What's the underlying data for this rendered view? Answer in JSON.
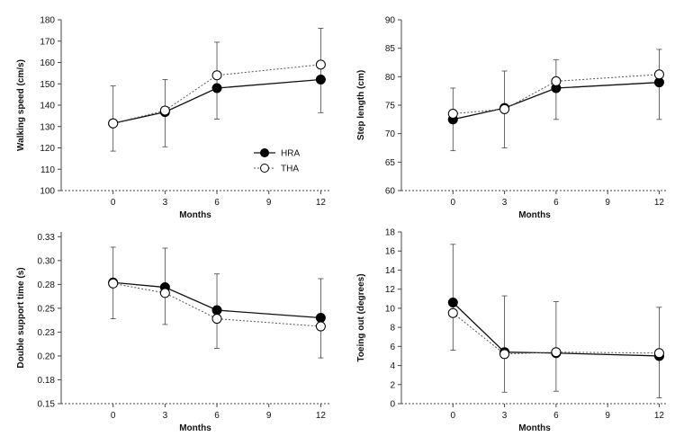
{
  "legend": {
    "series": [
      "HRA",
      "THA"
    ]
  },
  "chart_data": [
    {
      "type": "line",
      "xlabel": "Months",
      "ylabel": "Walking speed (cm/s)",
      "x": [
        0,
        3,
        6,
        12
      ],
      "xticks": [
        0,
        3,
        6,
        9,
        12
      ],
      "xlim": [
        -3,
        12.5
      ],
      "ylim": [
        100,
        180
      ],
      "yticks": [
        100,
        110,
        120,
        130,
        140,
        150,
        160,
        170,
        180
      ],
      "tick_labels": [
        "100",
        "110",
        "120",
        "130",
        "140",
        "150",
        "160",
        "170",
        "180"
      ],
      "series": [
        {
          "name": "HRA",
          "values": [
            131.5,
            136.8,
            148,
            152
          ],
          "err_low": [
            118.5,
            120.5,
            133.5,
            136.5
          ],
          "err_high": [
            149,
            152,
            169.5,
            176
          ],
          "style": "filled-solid"
        },
        {
          "name": "THA",
          "values": [
            131.5,
            137.5,
            154,
            159
          ],
          "err_low": [
            118.5,
            120.5,
            133.5,
            136.5
          ],
          "err_high": [
            149,
            152,
            169.5,
            176
          ],
          "style": "open-dotted"
        }
      ],
      "legend_placement": "inside-right"
    },
    {
      "type": "line",
      "xlabel": "Months",
      "ylabel": "Step length (cm)",
      "x": [
        0,
        3,
        6,
        12
      ],
      "xticks": [
        0,
        3,
        6,
        9,
        12
      ],
      "xlim": [
        -3,
        12.5
      ],
      "ylim": [
        60,
        90
      ],
      "yticks": [
        60,
        65,
        70,
        75,
        80,
        85,
        90
      ],
      "tick_labels": [
        "60",
        "65",
        "70",
        "75",
        "80",
        "85",
        "90"
      ],
      "series": [
        {
          "name": "HRA",
          "values": [
            72.5,
            74.5,
            78,
            79
          ],
          "err_low": [
            67,
            67.5,
            72.5,
            72.5
          ],
          "err_high": [
            78,
            81,
            83,
            84.8
          ],
          "style": "filled-solid"
        },
        {
          "name": "THA",
          "values": [
            73.5,
            74.3,
            79.2,
            80.4
          ],
          "err_low": [
            67,
            67.5,
            72.5,
            72.5
          ],
          "err_high": [
            78,
            81,
            83,
            84.8
          ],
          "style": "open-dotted"
        }
      ]
    },
    {
      "type": "line",
      "xlabel": "Months",
      "ylabel": "Double support time (s)",
      "x": [
        0,
        3,
        6,
        12
      ],
      "xticks": [
        0,
        3,
        6,
        9,
        12
      ],
      "xlim": [
        -3,
        12.5
      ],
      "ylim": [
        0.15,
        0.33
      ],
      "yticks": [
        0.15,
        0.175,
        0.2,
        0.225,
        0.25,
        0.275,
        0.3,
        0.325
      ],
      "tick_labels": [
        "0.15",
        "0.18",
        "0.20",
        "0.23",
        "0.25",
        "0.28",
        "0.30",
        "0.33"
      ],
      "series": [
        {
          "name": "HRA",
          "values": [
            0.277,
            0.272,
            0.248,
            0.24
          ],
          "err_low": [
            0.239,
            0.233,
            0.208,
            0.198
          ],
          "err_high": [
            0.314,
            0.313,
            0.286,
            0.281
          ],
          "style": "filled-solid"
        },
        {
          "name": "THA",
          "values": [
            0.276,
            0.266,
            0.239,
            0.231
          ],
          "err_low": [
            0.239,
            0.233,
            0.208,
            0.198
          ],
          "err_high": [
            0.314,
            0.313,
            0.286,
            0.281
          ],
          "style": "open-dotted"
        }
      ]
    },
    {
      "type": "line",
      "xlabel": "Months",
      "ylabel": "Toeing out (degrees)",
      "x": [
        0,
        3,
        6,
        12
      ],
      "xticks": [
        0,
        3,
        6,
        9,
        12
      ],
      "xlim": [
        -3,
        12.5
      ],
      "ylim": [
        0,
        18
      ],
      "yticks": [
        0,
        2,
        4,
        6,
        8,
        10,
        12,
        14,
        16,
        18
      ],
      "tick_labels": [
        "0",
        "2",
        "4",
        "6",
        "8",
        "10",
        "12",
        "14",
        "16",
        "18"
      ],
      "series": [
        {
          "name": "HRA",
          "values": [
            10.6,
            5.4,
            5.3,
            5.0
          ],
          "err_low": [
            5.6,
            1.2,
            1.3,
            0.6
          ],
          "err_high": [
            16.7,
            11.3,
            10.7,
            10.1
          ],
          "style": "filled-solid"
        },
        {
          "name": "THA",
          "values": [
            9.5,
            5.2,
            5.4,
            5.3
          ],
          "err_low": [
            5.6,
            1.2,
            1.3,
            0.6
          ],
          "err_high": [
            16.7,
            11.3,
            10.7,
            10.1
          ],
          "style": "open-dotted"
        }
      ]
    }
  ]
}
